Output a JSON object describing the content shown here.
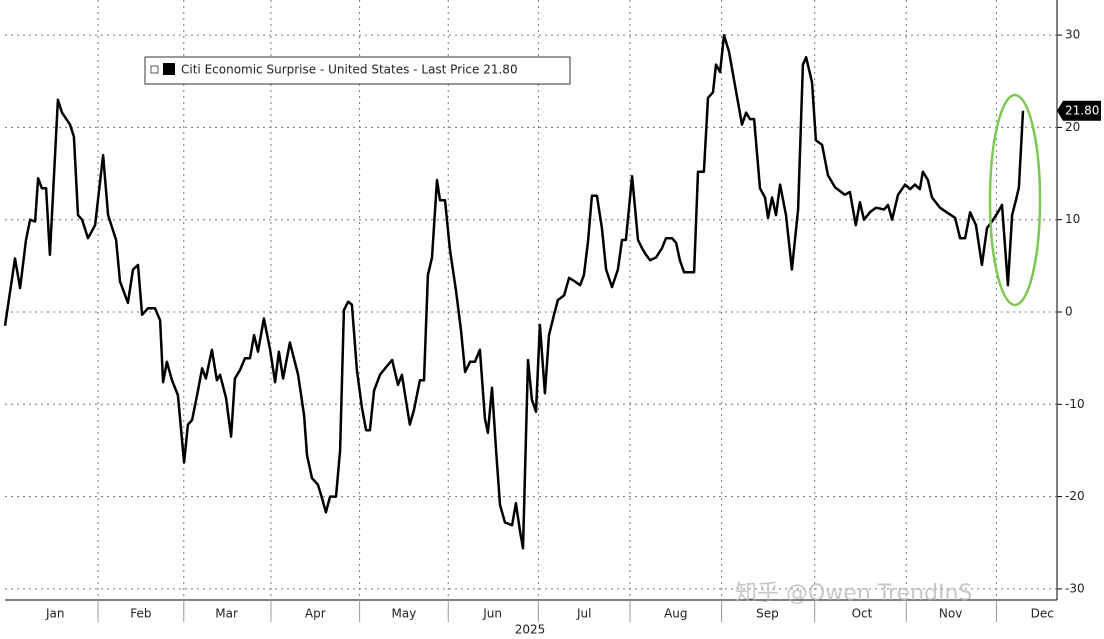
{
  "chart_data": {
    "type": "line",
    "legend": "Citi Economic Surprise - United States - Last Price 21.80",
    "color": "#000000",
    "grid": true,
    "axis_side": "right",
    "xlabel": "2025",
    "watermark": "知乎 @Owen TrendInS",
    "last_price": {
      "value": 21.8,
      "label": "21.80"
    },
    "xlim": [
      0,
      356
    ],
    "ylim": [
      -31.2,
      33.8
    ],
    "xticks": [
      {
        "value": 17,
        "label": "Jan"
      },
      {
        "value": 46,
        "label": "Feb"
      },
      {
        "value": 75,
        "label": "Mar"
      },
      {
        "value": 105,
        "label": "Apr"
      },
      {
        "value": 135,
        "label": "May"
      },
      {
        "value": 165,
        "label": "Jun"
      },
      {
        "value": 196,
        "label": "Jul"
      },
      {
        "value": 227,
        "label": "Aug"
      },
      {
        "value": 258,
        "label": "Sep"
      },
      {
        "value": 290,
        "label": "Oct"
      },
      {
        "value": 320,
        "label": "Nov"
      },
      {
        "value": 351,
        "label": "Dec"
      }
    ],
    "yticks": [
      -30,
      -20,
      -10,
      0,
      10,
      20,
      30
    ],
    "x": [
      0,
      3.4,
      5.1,
      7.1,
      8.5,
      10.2,
      11.2,
      12.5,
      13.9,
      15.2,
      17.9,
      19.3,
      22,
      23.3,
      24.7,
      26.1,
      28.1,
      30.5,
      33.2,
      34.9,
      37.6,
      38.9,
      41.6,
      43.3,
      45,
      46.4,
      48.4,
      50.8,
      52.5,
      53.5,
      54.8,
      56.5,
      58.5,
      60.6,
      61.9,
      63.3,
      65.3,
      66.7,
      68,
      70,
      71.7,
      72.8,
      74.8,
      76.5,
      77.8,
      79.5,
      81.2,
      82.9,
      84.3,
      85.6,
      87.6,
      89.7,
      91.4,
      92.7,
      94.1,
      96.4,
      99.2,
      101.2,
      102.2,
      103.9,
      105.9,
      107.3,
      108.6,
      110,
      112,
      113.4,
      114.7,
      116.1,
      117.4,
      119.1,
      120.8,
      122.2,
      123.5,
      124.9,
      126.9,
      128.9,
      131,
      133,
      134.3,
      137,
      138.4,
      140.4,
      141.8,
      143.1,
      144.5,
      146.2,
      147.2,
      148.9,
      150.6,
      152.6,
      154.3,
      155.7,
      157.4,
      159,
      160.7,
      162.4,
      163.4,
      164.8,
      166.2,
      167.5,
      169.2,
      171.6,
      172.9,
      174.3,
      175.3,
      177,
      178.3,
      179.7,
      181,
      182.7,
      184.1,
      185.8,
      187.1,
      189.2,
      190.9,
      192.9,
      194.6,
      195.9,
      197.3,
      198.6,
      200.3,
      202,
      203.4,
      205.4,
      207.4,
      208.8,
      210.1,
      212.2,
      214.2,
      215.6,
      216.9,
      218.3,
      220.3,
      222.3,
      223.7,
      225.7,
      227.1,
      228.4,
      229.8,
      231.8,
      233.2,
      234.5,
      236.5,
      237.9,
      239.6,
      240.6,
      242,
      243.3,
      245,
      247,
      249.4,
      250.8,
      252.1,
      253.5,
      255.5,
      257.2,
      258.2,
      259.6,
      260.9,
      262.3,
      264.3,
      266.3,
      268.4,
      270,
      271.1,
      273.1,
      274.4,
      276.5,
      278.5,
      280.9,
      284.2,
      285.9,
      287.9,
      289.3,
      290.7,
      292.7,
      294.7,
      297.5,
      298.8,
      300.2,
      302.2,
      304.6,
      306.3,
      307.9,
      309.6,
      310.6,
      312.3,
      313.7,
      316.4,
      319.1,
      321.5,
      323.2,
      324.9,
      326.6,
      328.6,
      330.6,
      332.3,
      334,
      336,
      337.4,
      339.4,
      340.8,
      342.1,
      343.1,
      344.5
    ],
    "values": [
      -1.5,
      5.8,
      2.6,
      7.8,
      10,
      9.8,
      14.5,
      13.4,
      13.4,
      6.2,
      23,
      21.6,
      20.3,
      19,
      10.5,
      10,
      8,
      9.4,
      17,
      10.5,
      7.8,
      3.3,
      1,
      4.6,
      5.1,
      -0.3,
      0.4,
      0.4,
      -0.9,
      -7.6,
      -5.4,
      -7.4,
      -9,
      -16.3,
      -12.2,
      -11.7,
      -8.5,
      -6.1,
      -7.2,
      -4.1,
      -7.4,
      -6.8,
      -9.3,
      -13.5,
      -7.2,
      -6.3,
      -5,
      -5,
      -2.5,
      -4.3,
      -0.7,
      -4.1,
      -7.6,
      -4.3,
      -7.2,
      -3.3,
      -6.8,
      -11.2,
      -15.5,
      -18,
      -18.7,
      -20.2,
      -21.7,
      -20,
      -20,
      -15,
      0.2,
      1.1,
      0.8,
      -6.3,
      -10.4,
      -12.8,
      -12.8,
      -8.5,
      -6.8,
      -6,
      -5.2,
      -7.9,
      -6.8,
      -12.2,
      -10.6,
      -7.4,
      -7.4,
      4,
      5.9,
      14.3,
      12.1,
      12.1,
      6.7,
      2.4,
      -2,
      -6.5,
      -5.4,
      -5.4,
      -4.1,
      -11.5,
      -13.1,
      -8.2,
      -15,
      -20.9,
      -22.8,
      -23.1,
      -20.7,
      -23.8,
      -25.6,
      -5.2,
      -9.5,
      -10.8,
      -1.4,
      -8.8,
      -2.5,
      -0.3,
      1.3,
      1.8,
      3.7,
      3.3,
      2.9,
      4,
      7.6,
      12.6,
      12.6,
      9.1,
      4.6,
      2.7,
      4.6,
      7.8,
      7.8,
      14.7,
      7.8,
      6.9,
      6.2,
      5.6,
      5.9,
      6.9,
      8,
      8,
      7.5,
      5.6,
      4.3,
      4.3,
      4.3,
      15.2,
      15.2,
      23.2,
      23.8,
      26.8,
      26,
      30,
      28.2,
      24.6,
      20.3,
      21.6,
      20.9,
      20.9,
      13.4,
      12.4,
      10.2,
      12.4,
      10.5,
      13.8,
      10.5,
      4.6,
      11.1,
      26.8,
      27.6,
      24.9,
      18.6,
      18.1,
      14.8,
      13.5,
      12.7,
      13,
      9.4,
      11.9,
      10,
      10.8,
      11.3,
      11.1,
      11.6,
      10,
      12.7,
      13.8,
      13.3,
      13.8,
      13.3,
      15.2,
      14.3,
      12.4,
      11.3,
      10.7,
      10.2,
      8,
      8,
      10.8,
      9.4,
      5.1,
      9.1,
      9.8,
      10.8,
      11.6,
      2.9,
      10.5,
      12.1,
      13.5,
      21.8
    ]
  }
}
